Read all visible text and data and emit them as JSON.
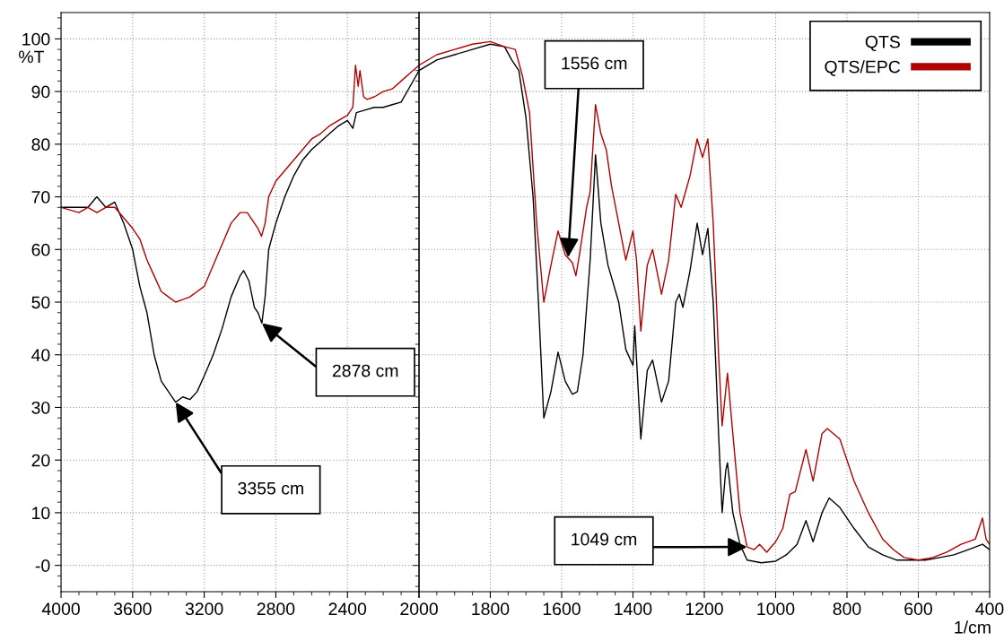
{
  "chart_data": [
    {
      "type": "line",
      "xlim": [
        4000,
        2000
      ],
      "ylim": [
        -5,
        105
      ],
      "xticks": [
        4000,
        3600,
        3200,
        2800,
        2400,
        2000
      ],
      "yticks": [
        {
          "value": 0,
          "label": "-0"
        },
        10,
        20,
        30,
        40,
        50,
        60,
        70,
        80,
        90,
        100
      ],
      "ylabel": "%T",
      "grid": true,
      "legend": false,
      "tick_labels": true,
      "annotations": [
        {
          "text": "2878 cm",
          "x": 2878,
          "y": 46
        },
        {
          "text": "3355 cm",
          "x": 3360,
          "y": 31
        }
      ],
      "series": [
        {
          "color": "#000000",
          "x": [
            4000,
            3950,
            3900,
            3850,
            3800,
            3750,
            3700,
            3650,
            3600,
            3560,
            3520,
            3480,
            3440,
            3400,
            3360,
            3320,
            3280,
            3240,
            3200,
            3150,
            3100,
            3050,
            3000,
            2980,
            2950,
            2920,
            2900,
            2878,
            2860,
            2840,
            2800,
            2750,
            2700,
            2650,
            2600,
            2550,
            2500,
            2450,
            2400,
            2370,
            2350,
            2300,
            2250,
            2200,
            2150,
            2100,
            2050,
            2000
          ],
          "values": [
            68,
            68,
            68,
            68,
            70,
            68,
            69,
            65,
            60,
            53,
            48,
            40,
            35,
            33,
            31,
            32,
            31.5,
            33,
            36,
            40,
            45,
            51,
            55,
            56,
            54,
            49,
            48,
            46,
            51,
            60,
            65,
            70,
            74,
            77,
            79,
            80.5,
            82,
            83.5,
            84.5,
            83,
            86,
            86.5,
            87,
            87,
            87.5,
            88,
            91,
            94
          ]
        },
        {
          "color": "#b00000",
          "x": [
            4000,
            3900,
            3850,
            3800,
            3750,
            3700,
            3650,
            3600,
            3560,
            3520,
            3480,
            3440,
            3400,
            3360,
            3320,
            3280,
            3240,
            3200,
            3150,
            3100,
            3050,
            3000,
            2960,
            2920,
            2900,
            2880,
            2860,
            2840,
            2800,
            2750,
            2700,
            2650,
            2600,
            2550,
            2500,
            2450,
            2400,
            2370,
            2355,
            2340,
            2330,
            2310,
            2290,
            2250,
            2200,
            2150,
            2100,
            2050,
            2000
          ],
          "values": [
            68,
            67,
            68,
            67,
            68,
            68,
            66,
            64,
            62,
            58,
            55,
            52,
            51,
            50,
            50.5,
            51,
            52,
            53,
            57,
            61,
            65,
            67,
            67,
            65,
            64,
            62.5,
            65,
            70,
            73,
            75,
            77,
            79,
            81,
            82,
            83.5,
            84.5,
            85.5,
            87,
            95,
            91,
            94,
            89,
            88.5,
            89,
            90,
            90.5,
            92,
            93.5,
            95
          ]
        }
      ]
    },
    {
      "type": "line",
      "xlim": [
        2000,
        400
      ],
      "ylim": [
        -5,
        105
      ],
      "xticks": [
        {
          "value": 2000,
          "label": null
        },
        1800,
        1600,
        1400,
        1200,
        1000,
        800,
        600,
        400
      ],
      "yticks": [
        {
          "value": 0,
          "label": null
        },
        {
          "value": 10,
          "label": null
        },
        {
          "value": 20,
          "label": null
        },
        {
          "value": 30,
          "label": null
        },
        {
          "value": 40,
          "label": null
        },
        {
          "value": 50,
          "label": null
        },
        {
          "value": 60,
          "label": null
        },
        {
          "value": 70,
          "label": null
        },
        {
          "value": 80,
          "label": null
        },
        {
          "value": 90,
          "label": null
        },
        {
          "value": 100,
          "label": null
        }
      ],
      "xlabel": "1/cm",
      "grid": true,
      "legend": "top right",
      "tick_labels": "x",
      "annotations": [
        {
          "text": "1556 cm",
          "x": 1582,
          "y": 58.5
        },
        {
          "text": "1049 cm",
          "x": 1080,
          "y": 3.5
        }
      ],
      "series": [
        {
          "name": "QTS",
          "color": "#000000",
          "x": [
            2000,
            1950,
            1900,
            1850,
            1800,
            1760,
            1740,
            1720,
            1700,
            1680,
            1665,
            1650,
            1630,
            1610,
            1590,
            1570,
            1556,
            1540,
            1520,
            1505,
            1490,
            1470,
            1440,
            1420,
            1400,
            1395,
            1378,
            1360,
            1345,
            1320,
            1300,
            1280,
            1270,
            1260,
            1240,
            1220,
            1205,
            1190,
            1175,
            1160,
            1150,
            1140,
            1135,
            1120,
            1100,
            1080,
            1040,
            1000,
            970,
            940,
            915,
            895,
            870,
            850,
            820,
            780,
            740,
            700,
            660,
            620,
            580,
            540,
            500,
            460,
            420,
            400
          ],
          "values": [
            94,
            96,
            97,
            98,
            99,
            98.5,
            96,
            94,
            85,
            70,
            50,
            28,
            33,
            40.5,
            35,
            32.5,
            33,
            40,
            58,
            78,
            65,
            57,
            50,
            41,
            38,
            45.5,
            24,
            37,
            39,
            31,
            35,
            50,
            51.5,
            49,
            56,
            65,
            59,
            64,
            50,
            25,
            10,
            18,
            19.5,
            10,
            4,
            1,
            0.5,
            0.8,
            2,
            4,
            8.5,
            4.5,
            10,
            12.8,
            11,
            7,
            3.5,
            2,
            1,
            1,
            1,
            1.5,
            2,
            3,
            4,
            3
          ]
        },
        {
          "name": "QTS/EPC",
          "color": "#b00000",
          "x": [
            2000,
            1950,
            1900,
            1850,
            1800,
            1760,
            1730,
            1710,
            1690,
            1670,
            1650,
            1630,
            1610,
            1590,
            1570,
            1560,
            1550,
            1530,
            1520,
            1505,
            1490,
            1475,
            1460,
            1440,
            1420,
            1400,
            1390,
            1378,
            1360,
            1345,
            1320,
            1300,
            1280,
            1265,
            1240,
            1220,
            1205,
            1190,
            1175,
            1160,
            1150,
            1135,
            1120,
            1100,
            1080,
            1060,
            1045,
            1025,
            1000,
            980,
            960,
            945,
            915,
            895,
            870,
            855,
            820,
            780,
            740,
            700,
            670,
            640,
            600,
            560,
            520,
            480,
            440,
            420,
            410,
            400
          ],
          "values": [
            95,
            97,
            98,
            99,
            99.5,
            98.5,
            98,
            93,
            86,
            65,
            50,
            57,
            63.5,
            59,
            57.5,
            55,
            59,
            68,
            71,
            87.5,
            82,
            79,
            72,
            65,
            58,
            63.5,
            58,
            44.5,
            57,
            60,
            51.5,
            58,
            70.5,
            68,
            74,
            81,
            77.5,
            81,
            65,
            40,
            26.5,
            36.5,
            25,
            10,
            3.5,
            3,
            4,
            2.5,
            4.5,
            7,
            13.5,
            14,
            22,
            16,
            25,
            26,
            24,
            16,
            10,
            5,
            3,
            1.5,
            1,
            1.5,
            2.5,
            4,
            5,
            9,
            5,
            4
          ]
        }
      ]
    }
  ]
}
